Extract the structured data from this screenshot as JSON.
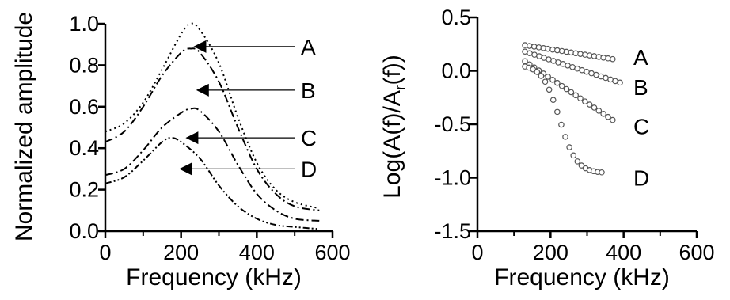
{
  "chart_data": [
    {
      "type": "line",
      "xlabel": "Frequency (kHz)",
      "ylabel": "Normalized amplitude",
      "xlim": [
        0,
        600
      ],
      "ylim": [
        0,
        1.0
      ],
      "xticks": [
        "0",
        "200",
        "400",
        "600"
      ],
      "yticks": [
        "0.0",
        "0.2",
        "0.4",
        "0.6",
        "0.8",
        "1.0"
      ],
      "grid": false,
      "series": [
        {
          "name": "A",
          "style": "dotted",
          "x": [
            0,
            50,
            100,
            150,
            200,
            225,
            250,
            300,
            350,
            400,
            450,
            500,
            565
          ],
          "values": [
            0.48,
            0.52,
            0.62,
            0.78,
            0.95,
            1.0,
            0.97,
            0.81,
            0.55,
            0.33,
            0.2,
            0.14,
            0.11
          ]
        },
        {
          "name": "B",
          "style": "dash-dot",
          "x": [
            0,
            50,
            100,
            150,
            200,
            225,
            250,
            300,
            350,
            400,
            450,
            500,
            565
          ],
          "values": [
            0.43,
            0.48,
            0.6,
            0.75,
            0.86,
            0.88,
            0.86,
            0.72,
            0.5,
            0.3,
            0.18,
            0.12,
            0.1
          ]
        },
        {
          "name": "C",
          "style": "dash-dot",
          "x": [
            0,
            50,
            100,
            150,
            200,
            225,
            250,
            300,
            350,
            400,
            450,
            500,
            565
          ],
          "values": [
            0.27,
            0.3,
            0.39,
            0.5,
            0.57,
            0.59,
            0.58,
            0.48,
            0.32,
            0.18,
            0.1,
            0.06,
            0.05
          ]
        },
        {
          "name": "D",
          "style": "dash-dot-dot",
          "x": [
            0,
            50,
            100,
            150,
            175,
            200,
            250,
            300,
            350,
            400,
            450,
            500,
            565
          ],
          "values": [
            0.23,
            0.26,
            0.34,
            0.43,
            0.45,
            0.43,
            0.35,
            0.22,
            0.12,
            0.06,
            0.03,
            0.02,
            0.01
          ]
        }
      ],
      "annotations": [
        {
          "label": "A",
          "arrow_tip": [
            233,
            0.89
          ]
        },
        {
          "label": "B",
          "arrow_tip": [
            240,
            0.68
          ]
        },
        {
          "label": "C",
          "arrow_tip": [
            212,
            0.45
          ]
        },
        {
          "label": "D",
          "arrow_tip": [
            195,
            0.3
          ]
        }
      ]
    },
    {
      "type": "scatter",
      "xlabel": "Frequency (kHz)",
      "ylabel_parts": {
        "before": "Log(A(f)/A",
        "sub": "r",
        "after": "(f))"
      },
      "xlim": [
        0,
        600
      ],
      "ylim": [
        -1.5,
        0.5
      ],
      "xticks": [
        "0",
        "200",
        "400",
        "600"
      ],
      "yticks": [
        "-1.5",
        "-1.0",
        "-0.5",
        "0.0",
        "0.5"
      ],
      "grid": false,
      "marker": "open-circle",
      "series": [
        {
          "name": "A",
          "x_start": 130,
          "x_end": 370,
          "y_start": 0.24,
          "y_end": 0.11,
          "n": 20,
          "curve": "linear"
        },
        {
          "name": "B",
          "x_start": 130,
          "x_end": 390,
          "y_start": 0.18,
          "y_end": -0.11,
          "n": 21,
          "curve": "linear"
        },
        {
          "name": "C",
          "x_start": 130,
          "x_end": 370,
          "y_start": 0.09,
          "y_end": -0.46,
          "n": 20,
          "curve": "linear"
        },
        {
          "name": "D",
          "x_start": 130,
          "x_end": 340,
          "y_start": 0.04,
          "y_end": -0.95,
          "n": 20,
          "curve": "sigmoid"
        }
      ],
      "labels": [
        {
          "text": "A",
          "y": 0.13
        },
        {
          "text": "B",
          "y": -0.15
        },
        {
          "text": "C",
          "y": -0.52
        },
        {
          "text": "D",
          "y": -1.0
        }
      ]
    }
  ]
}
